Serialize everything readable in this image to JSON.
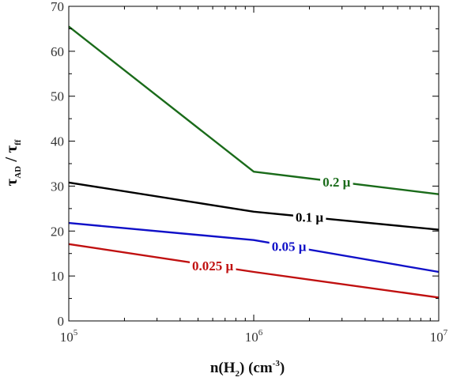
{
  "chart_data": {
    "type": "line",
    "x_scale": "log",
    "x_ticks": [
      {
        "value": 100000,
        "base": "10",
        "exp": "5"
      },
      {
        "value": 1000000,
        "base": "10",
        "exp": "6"
      },
      {
        "value": 10000000,
        "base": "10",
        "exp": "7"
      }
    ],
    "y_ticks": [
      0,
      10,
      20,
      30,
      40,
      50,
      60,
      70
    ],
    "xlim": [
      100000,
      10000000
    ],
    "ylim": [
      0,
      70
    ],
    "xlabel": {
      "main": "n(H",
      "sub": "2",
      "mid": ")  (cm",
      "sup": "-3",
      "end": ")"
    },
    "ylabel": {
      "tau1": "τ",
      "sub1": "AD",
      "slash": " / ",
      "tau2": "τ",
      "sub2": "ff"
    },
    "grid": false,
    "series": [
      {
        "name": "0.2 μ",
        "color": "#1a6b1a",
        "x": [
          100000,
          1000000,
          10000000
        ],
        "y": [
          65.5,
          33.2,
          28.2
        ],
        "label_at": 2800000
      },
      {
        "name": "0.1 μ",
        "color": "#000000",
        "x": [
          100000,
          1000000,
          10000000
        ],
        "y": [
          30.8,
          24.3,
          20.3
        ],
        "label_at": 2000000
      },
      {
        "name": "0.05 μ",
        "color": "#1010c8",
        "x": [
          100000,
          1000000,
          10000000
        ],
        "y": [
          21.8,
          18.0,
          10.9
        ],
        "label_at": 1550000
      },
      {
        "name": "0.025 μ",
        "color": "#c01010",
        "x": [
          100000,
          1000000,
          10000000
        ],
        "y": [
          17.1,
          10.9,
          5.2
        ],
        "label_at": 600000
      }
    ]
  }
}
